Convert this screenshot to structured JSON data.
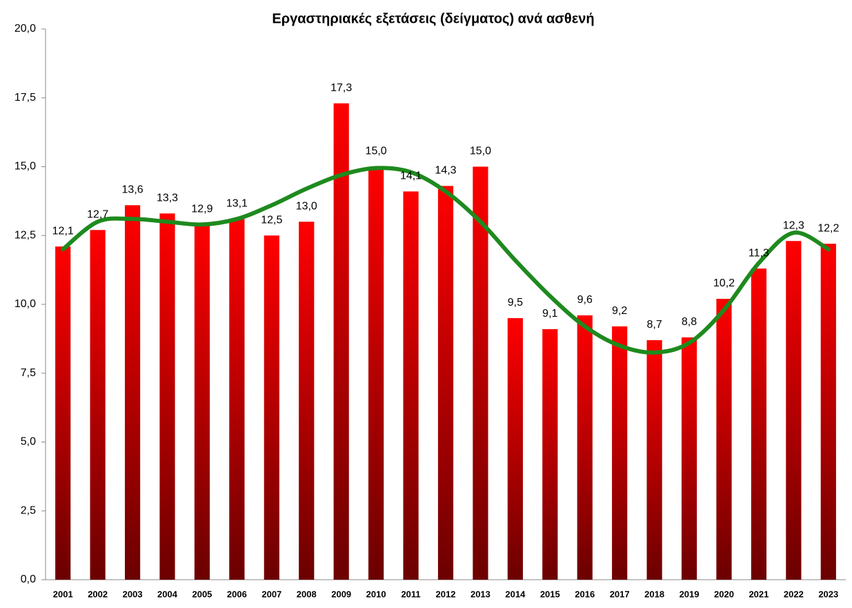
{
  "chart_data": {
    "type": "bar",
    "title": "Εργαστηριακές εξετάσεις (δείγματος) ανά ασθενή",
    "categories": [
      "2001",
      "2002",
      "2003",
      "2004",
      "2005",
      "2006",
      "2007",
      "2008",
      "2009",
      "2010",
      "2011",
      "2012",
      "2013",
      "2014",
      "2015",
      "2016",
      "2017",
      "2018",
      "2019",
      "2020",
      "2021",
      "2022",
      "2023"
    ],
    "values": [
      12.1,
      12.7,
      13.6,
      13.3,
      12.9,
      13.1,
      12.5,
      13.0,
      17.3,
      15.0,
      14.1,
      14.3,
      15.0,
      9.5,
      9.1,
      9.6,
      9.2,
      8.7,
      8.8,
      10.2,
      11.3,
      12.3,
      12.2
    ],
    "value_labels": [
      "12,1",
      "12,7",
      "13,6",
      "13,3",
      "12,9",
      "13,1",
      "12,5",
      "13,0",
      "17,3",
      "15,0",
      "14,1",
      "14,3",
      "15,0",
      "9,5",
      "9,1",
      "9,6",
      "9,2",
      "8,7",
      "8,8",
      "10,2",
      "11,3",
      "12,3",
      "12,2"
    ],
    "color": "#ff0000",
    "gradient_to": "#6b0000",
    "ylim": [
      0,
      20
    ],
    "yticks": [
      {
        "value": 0,
        "label": "0,0"
      },
      {
        "value": 2.5,
        "label": "2,5"
      },
      {
        "value": 5,
        "label": "5,0"
      },
      {
        "value": 7.5,
        "label": "7,5"
      },
      {
        "value": 10,
        "label": "10,0"
      },
      {
        "value": 12.5,
        "label": "12,5"
      },
      {
        "value": 15,
        "label": "15,0"
      },
      {
        "value": 17.5,
        "label": "17,5"
      },
      {
        "value": 20,
        "label": "20,0"
      }
    ],
    "grid": false,
    "trendline": {
      "color": "#1e8a1e",
      "values": [
        12.0,
        13.0,
        13.1,
        13.0,
        12.9,
        13.1,
        13.6,
        14.2,
        14.7,
        14.95,
        14.8,
        14.1,
        13.0,
        11.6,
        10.3,
        9.2,
        8.5,
        8.25,
        8.6,
        9.8,
        11.5,
        12.6,
        12.0
      ]
    }
  }
}
